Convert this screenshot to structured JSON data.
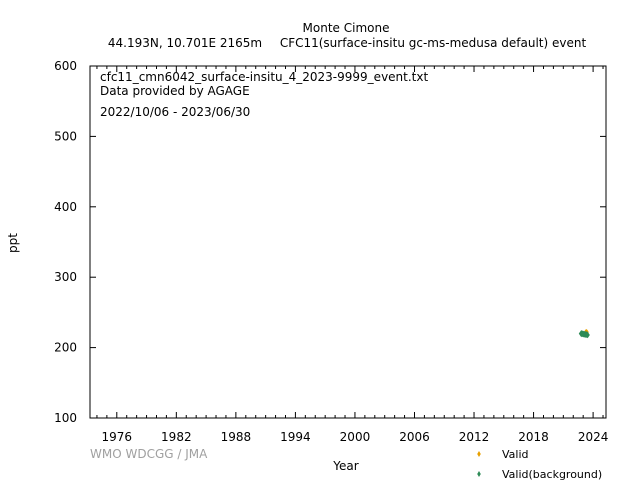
{
  "header": {
    "station": "Monte Cimone",
    "location": "44.193N, 10.701E 2165m",
    "dataset": "CFC11(surface-insitu gc-ms-medusa default) event"
  },
  "info": {
    "filename": "cfc11_cmn6042_surface-insitu_4_2023-9999_event.txt",
    "provider": "Data provided by AGAGE",
    "period": "2022/10/06 - 2023/06/30"
  },
  "credit": "WMO WDCGG / JMA",
  "chart_data": {
    "type": "scatter",
    "xlabel": "Year",
    "ylabel": "ppt",
    "xlim": [
      1973.3,
      2025.3
    ],
    "ylim": [
      100,
      600
    ],
    "x_ticks": [
      1976,
      1982,
      1988,
      1994,
      2000,
      2006,
      2012,
      2018,
      2024
    ],
    "y_ticks": [
      100,
      200,
      300,
      400,
      500,
      600
    ],
    "grid": false,
    "legend_position": "bottom-right",
    "series": [
      {
        "name": "Valid",
        "color": "#e8a000",
        "points": [
          [
            2023.25,
            221.5
          ],
          [
            2023.35,
            222.0
          ]
        ]
      },
      {
        "name": "Valid(background)",
        "color": "#2e8b57",
        "points": [
          [
            2022.78,
            219.8
          ],
          [
            2022.82,
            220.4
          ],
          [
            2022.86,
            219.2
          ],
          [
            2022.9,
            219.9
          ],
          [
            2022.95,
            219.5
          ],
          [
            2023.0,
            218.9
          ],
          [
            2023.05,
            219.6
          ],
          [
            2023.1,
            218.7
          ],
          [
            2023.15,
            219.2
          ],
          [
            2023.2,
            218.4
          ],
          [
            2023.25,
            219.0
          ],
          [
            2023.3,
            218.1
          ],
          [
            2023.35,
            218.8
          ],
          [
            2023.4,
            218.3
          ],
          [
            2023.45,
            217.9
          ]
        ]
      }
    ]
  }
}
